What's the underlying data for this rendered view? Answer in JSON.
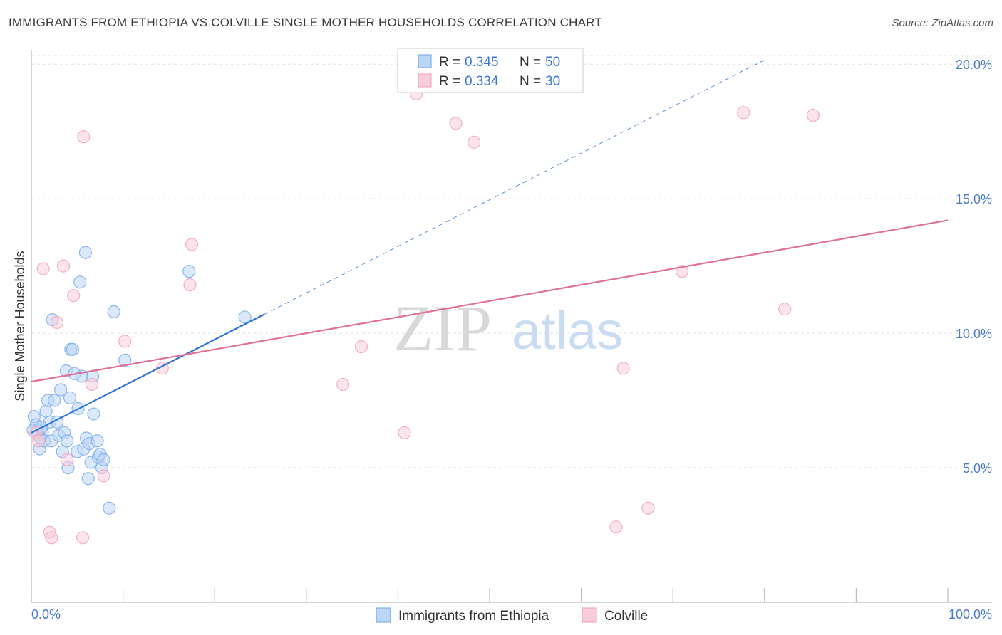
{
  "title": "IMMIGRANTS FROM ETHIOPIA VS COLVILLE SINGLE MOTHER HOUSEHOLDS CORRELATION CHART",
  "source": "Source: ZipAtlas.com",
  "watermark": {
    "zip": "ZIP",
    "atlas": "atlas"
  },
  "legend": {
    "r_label": "R =",
    "n_label": "N =",
    "rows": [
      {
        "r": "0.345",
        "n": "50"
      },
      {
        "r": "0.334",
        "n": "30"
      }
    ]
  },
  "chart_data": {
    "type": "scatter",
    "title": "IMMIGRANTS FROM ETHIOPIA VS COLVILLE SINGLE MOTHER HOUSEHOLDS CORRELATION CHART",
    "xlabel": "",
    "ylabel": "Single Mother Households",
    "xlim": [
      0,
      100
    ],
    "ylim": [
      0,
      20.8
    ],
    "x_tick_labels": {
      "min": "0.0%",
      "max": "100.0%"
    },
    "y_ticks": [
      {
        "value": 5,
        "label": "5.0%"
      },
      {
        "value": 10,
        "label": "10.0%"
      },
      {
        "value": 15,
        "label": "15.0%"
      },
      {
        "value": 20,
        "label": "20.0%"
      }
    ],
    "series": [
      {
        "name": "Immigrants from Ethiopia",
        "color": "#7fb0ea",
        "fill": "#bcd6f5",
        "trend_color": "#2f74cf",
        "trend": {
          "x0": 0,
          "y0": 6.3,
          "x1": 25.4,
          "y1": 10.7,
          "dashed_to_x": 80
        },
        "points": [
          [
            0.3,
            6.9
          ],
          [
            0.5,
            6.6
          ],
          [
            0.7,
            6.4
          ],
          [
            0.8,
            6.2
          ],
          [
            0.9,
            5.7
          ],
          [
            1.0,
            6.1
          ],
          [
            1.2,
            6.3
          ],
          [
            1.4,
            6.0
          ],
          [
            1.6,
            7.1
          ],
          [
            1.8,
            7.5
          ],
          [
            2.0,
            6.7
          ],
          [
            2.2,
            6.0
          ],
          [
            2.3,
            10.5
          ],
          [
            2.5,
            7.5
          ],
          [
            2.8,
            6.7
          ],
          [
            3.0,
            6.2
          ],
          [
            3.2,
            7.9
          ],
          [
            3.4,
            5.6
          ],
          [
            3.6,
            6.3
          ],
          [
            3.8,
            8.6
          ],
          [
            3.9,
            6.0
          ],
          [
            4.0,
            5.0
          ],
          [
            4.2,
            7.6
          ],
          [
            4.3,
            9.4
          ],
          [
            4.5,
            9.4
          ],
          [
            4.7,
            8.5
          ],
          [
            5.0,
            5.6
          ],
          [
            5.1,
            7.2
          ],
          [
            5.3,
            11.9
          ],
          [
            5.5,
            8.4
          ],
          [
            5.7,
            5.7
          ],
          [
            5.9,
            13.0
          ],
          [
            6.0,
            6.1
          ],
          [
            6.2,
            4.6
          ],
          [
            6.3,
            5.9
          ],
          [
            6.5,
            5.2
          ],
          [
            6.7,
            8.4
          ],
          [
            6.8,
            7.0
          ],
          [
            7.2,
            6.0
          ],
          [
            7.3,
            5.4
          ],
          [
            7.5,
            5.5
          ],
          [
            7.7,
            5.0
          ],
          [
            7.9,
            5.3
          ],
          [
            8.5,
            3.5
          ],
          [
            9.0,
            10.8
          ],
          [
            10.2,
            9.0
          ],
          [
            17.2,
            12.3
          ],
          [
            23.3,
            10.6
          ],
          [
            0.2,
            6.4
          ],
          [
            1.1,
            6.5
          ]
        ]
      },
      {
        "name": "Colville",
        "color": "#f2a7c0",
        "fill": "#f8cddb",
        "trend_color": "#e07098",
        "trend": {
          "x0": 0,
          "y0": 8.2,
          "x1": 100,
          "y1": 14.2
        },
        "points": [
          [
            0.5,
            6.3
          ],
          [
            0.8,
            6.0
          ],
          [
            1.3,
            12.4
          ],
          [
            2.0,
            2.6
          ],
          [
            2.2,
            2.4
          ],
          [
            2.8,
            10.4
          ],
          [
            3.5,
            12.5
          ],
          [
            3.9,
            5.3
          ],
          [
            4.6,
            11.4
          ],
          [
            5.6,
            2.4
          ],
          [
            5.7,
            17.3
          ],
          [
            6.6,
            8.1
          ],
          [
            7.9,
            4.7
          ],
          [
            10.2,
            9.7
          ],
          [
            14.3,
            8.7
          ],
          [
            17.3,
            11.8
          ],
          [
            17.5,
            13.3
          ],
          [
            34.0,
            8.1
          ],
          [
            36.0,
            9.5
          ],
          [
            40.7,
            6.3
          ],
          [
            42.0,
            18.9
          ],
          [
            46.3,
            17.8
          ],
          [
            48.3,
            17.1
          ],
          [
            63.8,
            2.8
          ],
          [
            64.6,
            8.7
          ],
          [
            67.3,
            3.5
          ],
          [
            71.0,
            12.3
          ],
          [
            77.7,
            18.2
          ],
          [
            82.2,
            10.9
          ],
          [
            85.3,
            18.1
          ]
        ]
      }
    ],
    "legend": [
      "Immigrants from Ethiopia",
      "Colville"
    ]
  }
}
